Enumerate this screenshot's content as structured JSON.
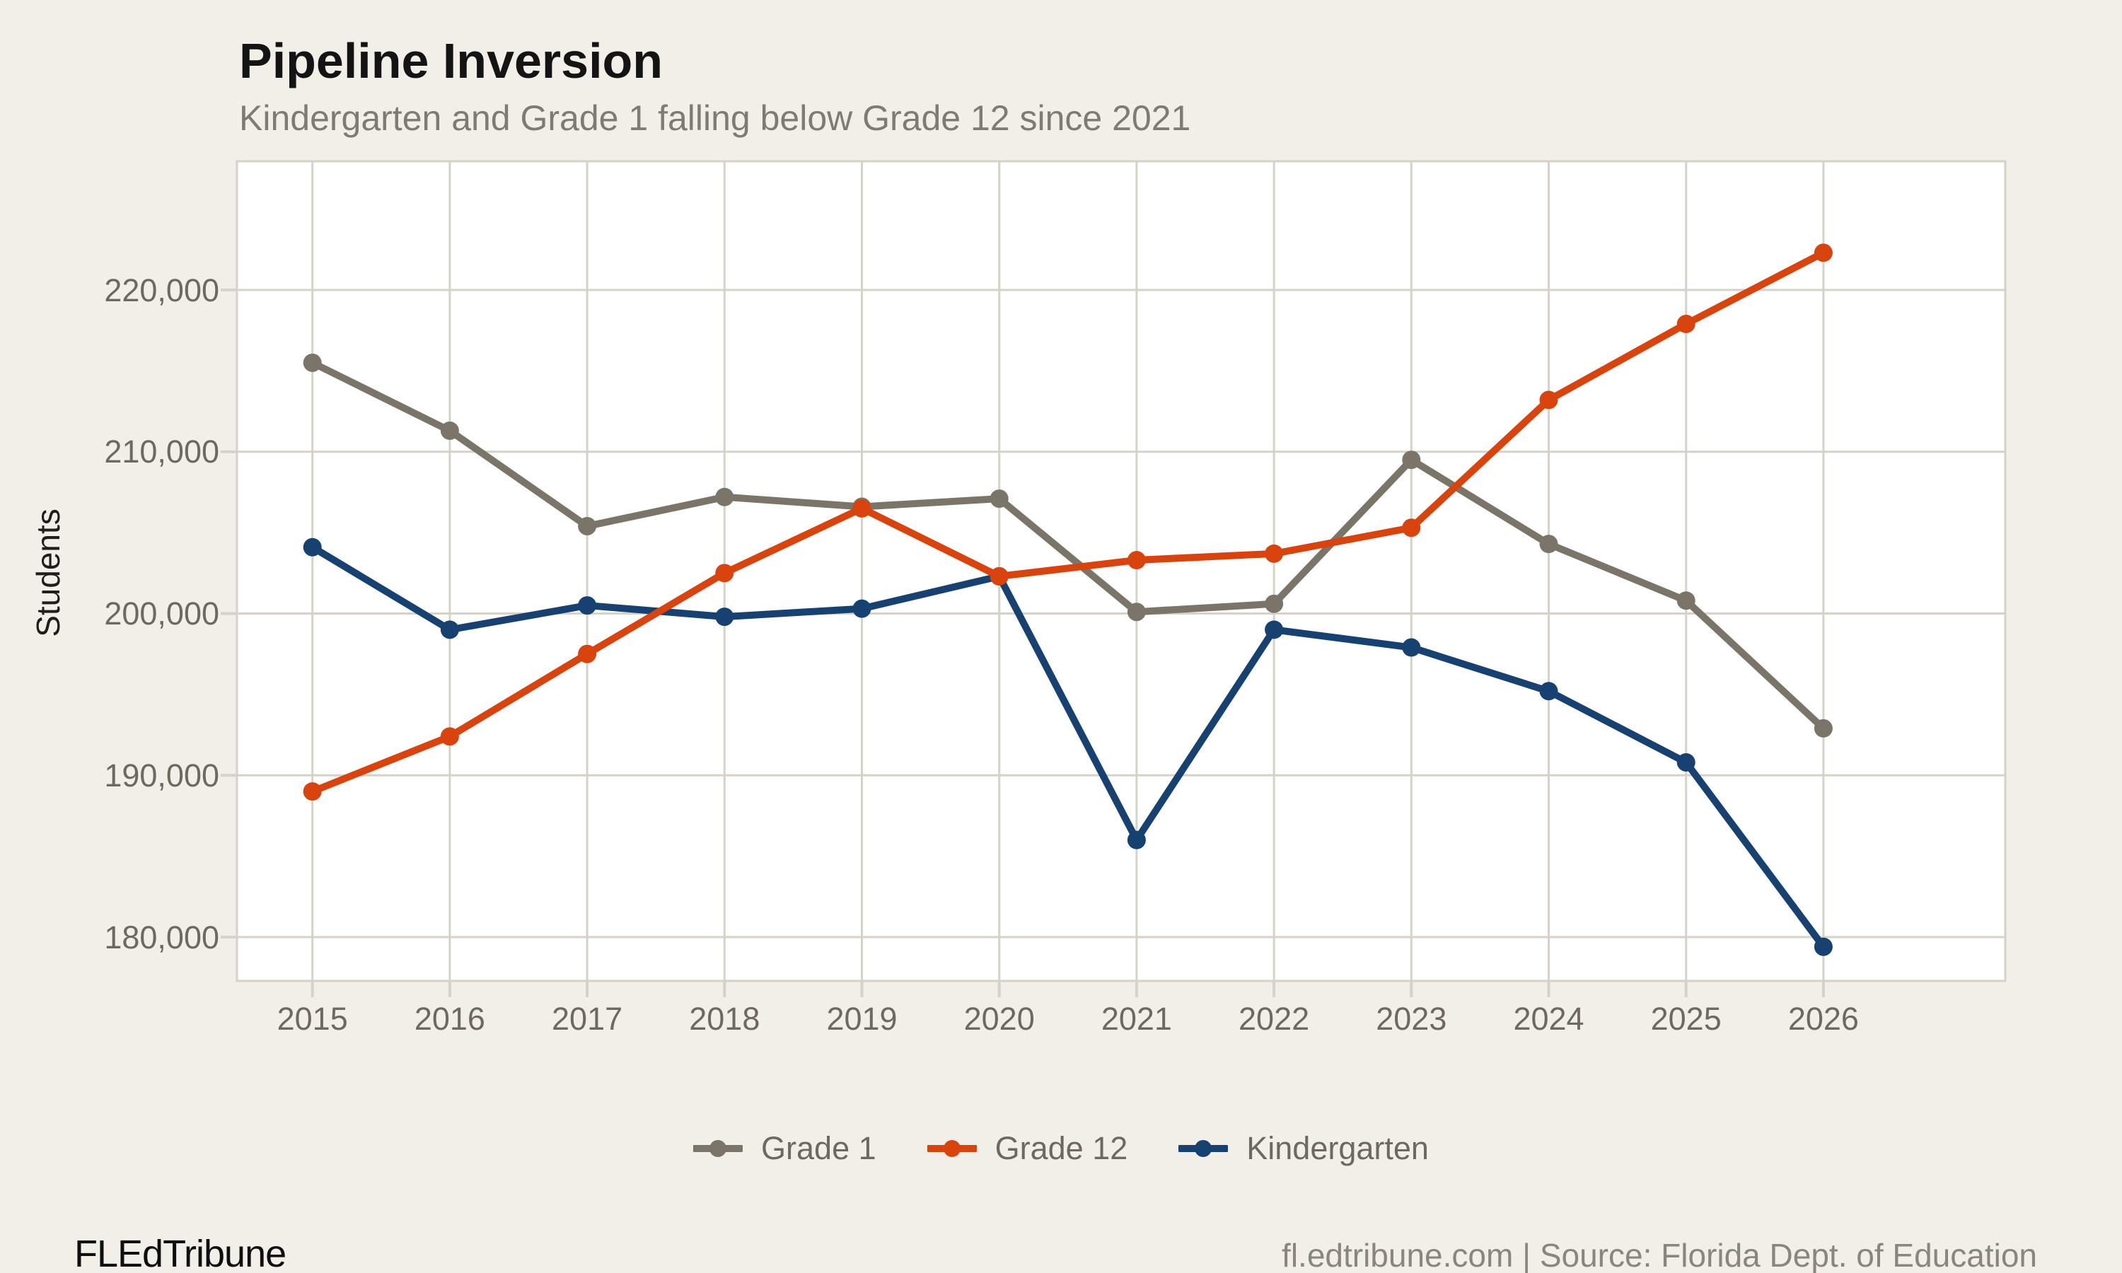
{
  "header": {
    "title": "Pipeline Inversion",
    "subtitle": "Kindergarten and Grade 1 falling below Grade 12 since 2021"
  },
  "chart_data": {
    "type": "line",
    "x": [
      2015,
      2016,
      2017,
      2018,
      2019,
      2020,
      2021,
      2022,
      2023,
      2024,
      2025,
      2026
    ],
    "series": [
      {
        "name": "Grade 1",
        "color": "#7B7468",
        "values": [
          215500,
          211300,
          205400,
          207200,
          206600,
          207100,
          200100,
          200600,
          209500,
          204300,
          200800,
          192900
        ]
      },
      {
        "name": "Grade 12",
        "color": "#D8430E",
        "values": [
          189000,
          192400,
          197500,
          202500,
          206500,
          202300,
          203300,
          203700,
          205300,
          213200,
          217900,
          222300
        ]
      },
      {
        "name": "Kindergarten",
        "color": "#164170",
        "values": [
          204100,
          199000,
          200500,
          199800,
          200300,
          202300,
          186000,
          199000,
          197900,
          195200,
          190800,
          179400
        ]
      }
    ],
    "draw_order": [
      0,
      2,
      1
    ],
    "title": "Pipeline Inversion",
    "subtitle": "Kindergarten and Grade 1 falling below Grade 12 since 2021",
    "xlabel": "",
    "ylabel": "Students",
    "yticks": [
      180000,
      190000,
      200000,
      210000,
      220000
    ],
    "ytick_labels": [
      "180,000",
      "190,000",
      "200,000",
      "210,000",
      "220,000"
    ],
    "xtick_labels": [
      "2015",
      "2016",
      "2017",
      "2018",
      "2019",
      "2020",
      "2021",
      "2022",
      "2023",
      "2024",
      "2025",
      "2026"
    ],
    "ylim": [
      177300,
      228000
    ],
    "grid": true,
    "legend_position": "bottom",
    "background_color": "#F2EFE9",
    "panel_color": "#FFFFFF",
    "grid_color": "#D6D2C8"
  },
  "footer": {
    "brand": "FLEdTribune",
    "source": "fl.edtribune.com | Source: Florida Dept. of Education"
  }
}
